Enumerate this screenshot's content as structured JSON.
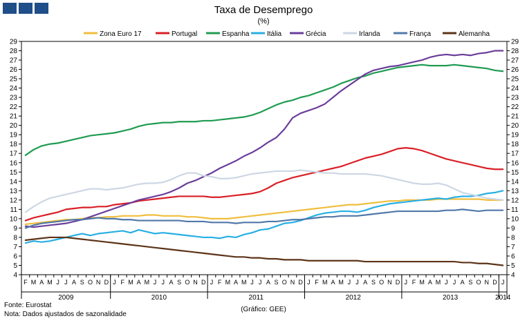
{
  "header": {
    "title": "Taxa de Desemprego",
    "subtitle": "(%)"
  },
  "footer": {
    "source": "Fonte: Eurostat",
    "note": "Nota: Dados ajustados de sazonalidade",
    "credit": "(Gráfico: GEE)"
  },
  "chart_data": {
    "type": "line",
    "title": "Taxa de Desemprego",
    "ylabel": "(%)",
    "ylim": [
      4,
      29
    ],
    "yticks": [
      4,
      5,
      6,
      7,
      8,
      9,
      10,
      11,
      12,
      13,
      14,
      15,
      16,
      17,
      18,
      19,
      20,
      21,
      22,
      23,
      24,
      25,
      26,
      27,
      28,
      29
    ],
    "month_labels": [
      "F",
      "M",
      "A",
      "M",
      "J",
      "J",
      "A",
      "S",
      "O",
      "N",
      "D",
      "J",
      "F",
      "M",
      "A",
      "M",
      "J",
      "J",
      "A",
      "S",
      "O",
      "N",
      "D",
      "J",
      "F",
      "M",
      "A",
      "M",
      "J",
      "J",
      "A",
      "S",
      "O",
      "N",
      "D",
      "J",
      "F",
      "M",
      "A",
      "M",
      "J",
      "J",
      "A",
      "S",
      "O",
      "N",
      "D",
      "J",
      "F",
      "M",
      "A",
      "M",
      "J",
      "J",
      "A",
      "S",
      "O",
      "N",
      "D",
      "J"
    ],
    "year_labels": [
      {
        "label": "2009",
        "start": 0,
        "end": 10
      },
      {
        "label": "2010",
        "start": 11,
        "end": 22
      },
      {
        "label": "2011",
        "start": 23,
        "end": 34
      },
      {
        "label": "2012",
        "start": 35,
        "end": 46
      },
      {
        "label": "2013",
        "start": 47,
        "end": 58
      },
      {
        "label": "2014",
        "start": 59,
        "end": 59
      }
    ],
    "legend_position": "top",
    "grid": false,
    "series": [
      {
        "name": "Zona Euro 17",
        "color": "#f0be3c",
        "values": [
          9.4,
          9.5,
          9.6,
          9.7,
          9.8,
          9.9,
          9.9,
          10.0,
          10.1,
          10.1,
          10.2,
          10.2,
          10.3,
          10.3,
          10.3,
          10.4,
          10.4,
          10.3,
          10.3,
          10.3,
          10.2,
          10.2,
          10.1,
          10.0,
          10.0,
          10.0,
          10.1,
          10.2,
          10.3,
          10.4,
          10.5,
          10.6,
          10.7,
          10.8,
          10.9,
          11.0,
          11.1,
          11.2,
          11.3,
          11.4,
          11.5,
          11.5,
          11.6,
          11.7,
          11.8,
          11.9,
          11.9,
          12.0,
          12.0,
          12.0,
          12.0,
          12.1,
          12.1,
          12.1,
          12.1,
          12.1,
          12.1,
          12.0,
          12.0,
          12.0
        ]
      },
      {
        "name": "Portugal",
        "color": "#d91f26",
        "values": [
          9.8,
          10.1,
          10.3,
          10.5,
          10.7,
          11.0,
          11.1,
          11.2,
          11.2,
          11.3,
          11.3,
          11.5,
          11.6,
          11.7,
          11.9,
          12.0,
          12.1,
          12.2,
          12.3,
          12.4,
          12.4,
          12.4,
          12.4,
          12.3,
          12.3,
          12.4,
          12.5,
          12.6,
          12.7,
          12.9,
          13.3,
          13.8,
          14.1,
          14.4,
          14.6,
          14.8,
          15.0,
          15.2,
          15.4,
          15.6,
          15.9,
          16.2,
          16.5,
          16.7,
          16.9,
          17.2,
          17.5,
          17.6,
          17.5,
          17.3,
          17.0,
          16.7,
          16.4,
          16.2,
          16.0,
          15.8,
          15.6,
          15.4,
          15.3,
          15.3
        ]
      },
      {
        "name": "Espanha",
        "color": "#1e9b50",
        "values": [
          16.8,
          17.4,
          17.8,
          18.0,
          18.1,
          18.3,
          18.5,
          18.7,
          18.9,
          19.0,
          19.1,
          19.2,
          19.4,
          19.6,
          19.9,
          20.1,
          20.2,
          20.3,
          20.3,
          20.4,
          20.4,
          20.4,
          20.5,
          20.5,
          20.6,
          20.7,
          20.8,
          20.9,
          21.1,
          21.4,
          21.8,
          22.2,
          22.5,
          22.7,
          23.0,
          23.2,
          23.5,
          23.8,
          24.1,
          24.5,
          24.8,
          25.1,
          25.3,
          25.6,
          25.8,
          26.0,
          26.2,
          26.3,
          26.4,
          26.5,
          26.4,
          26.4,
          26.4,
          26.5,
          26.4,
          26.3,
          26.2,
          26.1,
          25.9,
          25.8
        ]
      },
      {
        "name": "Itália",
        "color": "#27aee3",
        "values": [
          7.4,
          7.6,
          7.5,
          7.6,
          7.8,
          8.0,
          8.2,
          8.4,
          8.2,
          8.4,
          8.5,
          8.6,
          8.7,
          8.5,
          8.8,
          8.6,
          8.4,
          8.5,
          8.4,
          8.3,
          8.2,
          8.1,
          8.0,
          8.0,
          7.9,
          8.1,
          8.0,
          8.3,
          8.5,
          8.8,
          8.9,
          9.2,
          9.5,
          9.6,
          9.8,
          10.1,
          10.4,
          10.6,
          10.7,
          10.8,
          10.8,
          10.7,
          10.9,
          11.2,
          11.4,
          11.6,
          11.7,
          11.8,
          11.9,
          12.0,
          12.1,
          12.2,
          12.1,
          12.3,
          12.4,
          12.4,
          12.5,
          12.7,
          12.8,
          13.0
        ]
      },
      {
        "name": "Grécia",
        "color": "#6a3d9a",
        "values": [
          9.2,
          9.1,
          9.2,
          9.3,
          9.4,
          9.5,
          9.7,
          9.9,
          10.2,
          10.5,
          10.8,
          11.1,
          11.4,
          11.7,
          12.0,
          12.2,
          12.4,
          12.6,
          12.9,
          13.3,
          13.8,
          14.1,
          14.5,
          14.9,
          15.4,
          15.8,
          16.2,
          16.7,
          17.1,
          17.6,
          18.2,
          18.7,
          19.6,
          20.8,
          21.3,
          21.6,
          21.9,
          22.3,
          23.0,
          23.7,
          24.3,
          24.9,
          25.5,
          25.9,
          26.1,
          26.3,
          26.4,
          26.6,
          26.8,
          27.0,
          27.3,
          27.5,
          27.6,
          27.5,
          27.6,
          27.5,
          27.7,
          27.8,
          28.0,
          28.0
        ]
      },
      {
        "name": "Irlanda",
        "color": "#cdd7e4",
        "values": [
          10.7,
          11.3,
          11.8,
          12.2,
          12.4,
          12.6,
          12.8,
          13.0,
          13.2,
          13.2,
          13.1,
          13.2,
          13.3,
          13.5,
          13.7,
          13.8,
          13.8,
          13.9,
          14.2,
          14.6,
          14.9,
          14.9,
          14.6,
          14.5,
          14.3,
          14.3,
          14.4,
          14.6,
          14.8,
          14.9,
          15.0,
          15.1,
          15.1,
          15.1,
          15.2,
          15.1,
          15.0,
          14.9,
          14.9,
          14.8,
          14.8,
          14.8,
          14.8,
          14.7,
          14.6,
          14.4,
          14.2,
          14.0,
          13.8,
          13.7,
          13.7,
          13.8,
          13.6,
          13.2,
          12.8,
          12.6,
          12.4,
          12.2,
          12.1,
          12.0
        ]
      },
      {
        "name": "França",
        "color": "#5078a8",
        "values": [
          9.0,
          9.3,
          9.5,
          9.6,
          9.7,
          9.8,
          9.9,
          9.9,
          10.0,
          10.1,
          10.0,
          10.0,
          9.9,
          9.9,
          9.8,
          9.8,
          9.8,
          9.8,
          9.8,
          9.8,
          9.7,
          9.7,
          9.7,
          9.6,
          9.6,
          9.6,
          9.5,
          9.6,
          9.6,
          9.6,
          9.7,
          9.7,
          9.8,
          9.9,
          9.9,
          10.0,
          10.1,
          10.2,
          10.2,
          10.3,
          10.3,
          10.3,
          10.4,
          10.5,
          10.6,
          10.7,
          10.8,
          10.8,
          10.8,
          10.8,
          10.8,
          10.8,
          10.9,
          10.9,
          11.0,
          10.9,
          10.8,
          10.9,
          10.9,
          10.9
        ]
      },
      {
        "name": "Alemanha",
        "color": "#5c3317",
        "values": [
          7.7,
          7.8,
          7.9,
          8.0,
          8.0,
          8.0,
          7.9,
          7.8,
          7.7,
          7.6,
          7.5,
          7.4,
          7.3,
          7.2,
          7.1,
          7.0,
          6.9,
          6.8,
          6.7,
          6.6,
          6.5,
          6.4,
          6.3,
          6.2,
          6.1,
          6.0,
          5.9,
          5.9,
          5.8,
          5.8,
          5.7,
          5.7,
          5.6,
          5.6,
          5.6,
          5.5,
          5.5,
          5.5,
          5.5,
          5.5,
          5.5,
          5.5,
          5.4,
          5.4,
          5.4,
          5.4,
          5.4,
          5.4,
          5.4,
          5.4,
          5.4,
          5.4,
          5.4,
          5.4,
          5.3,
          5.3,
          5.2,
          5.2,
          5.1,
          5.0
        ]
      }
    ]
  }
}
